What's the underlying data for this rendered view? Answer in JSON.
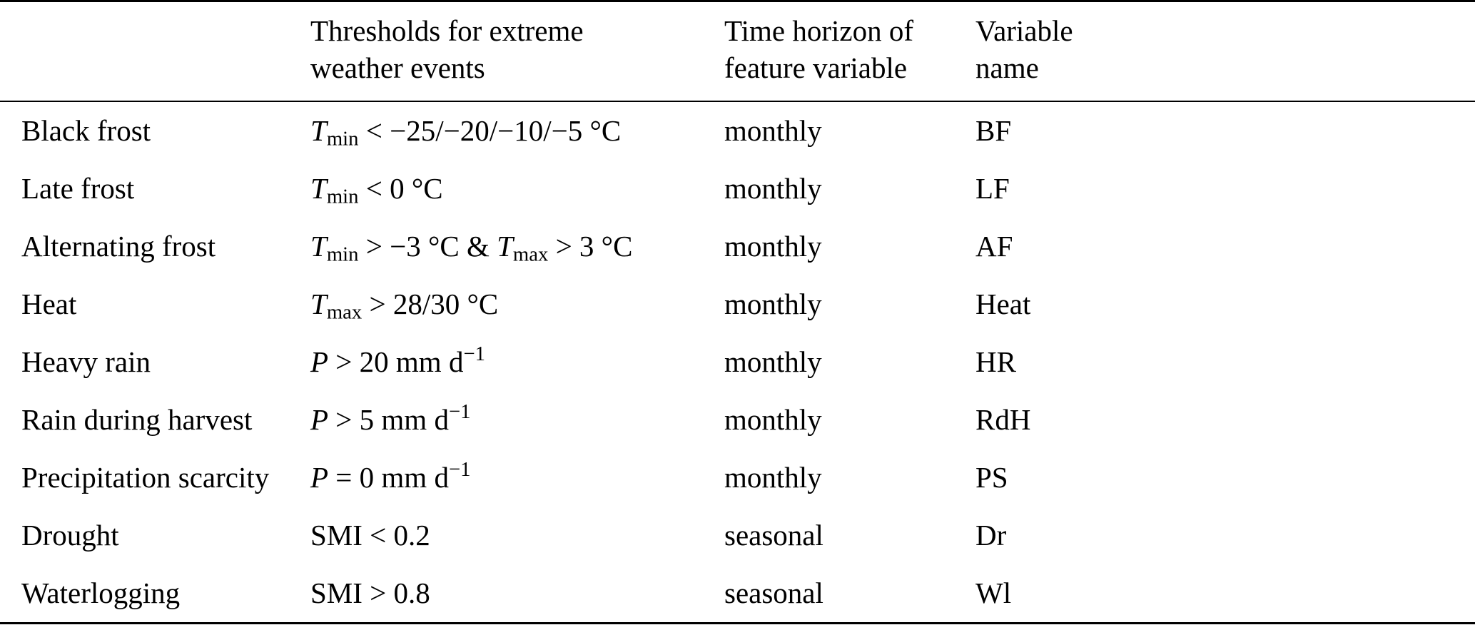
{
  "table": {
    "headers": [
      {
        "lines": [
          "",
          ""
        ]
      },
      {
        "lines": [
          "Thresholds for extreme",
          "weather events"
        ]
      },
      {
        "lines": [
          "Time horizon of",
          "feature variable"
        ]
      },
      {
        "lines": [
          "Variable",
          "name"
        ]
      }
    ],
    "rows": [
      {
        "event": "Black frost",
        "threshold": [
          {
            "t": "var",
            "text": "T"
          },
          {
            "t": "sub",
            "text": "min"
          },
          {
            "t": "txt",
            "text": " < −25/−20/−10/−5 °C"
          }
        ],
        "horizon": "monthly",
        "variable": "BF"
      },
      {
        "event": "Late frost",
        "threshold": [
          {
            "t": "var",
            "text": "T"
          },
          {
            "t": "sub",
            "text": "min"
          },
          {
            "t": "txt",
            "text": " < 0 °C"
          }
        ],
        "horizon": "monthly",
        "variable": "LF"
      },
      {
        "event": "Alternating frost",
        "threshold": [
          {
            "t": "var",
            "text": "T"
          },
          {
            "t": "sub",
            "text": "min"
          },
          {
            "t": "txt",
            "text": " > −3 °C & "
          },
          {
            "t": "var",
            "text": "T"
          },
          {
            "t": "sub",
            "text": "max"
          },
          {
            "t": "txt",
            "text": " > 3 °C"
          }
        ],
        "horizon": "monthly",
        "variable": "AF"
      },
      {
        "event": "Heat",
        "threshold": [
          {
            "t": "var",
            "text": "T"
          },
          {
            "t": "sub",
            "text": "max"
          },
          {
            "t": "txt",
            "text": " > 28/30 °C"
          }
        ],
        "horizon": "monthly",
        "variable": "Heat"
      },
      {
        "event": "Heavy rain",
        "threshold": [
          {
            "t": "var",
            "text": "P"
          },
          {
            "t": "txt",
            "text": " > 20 mm d"
          },
          {
            "t": "sup",
            "text": "−1"
          }
        ],
        "horizon": "monthly",
        "variable": "HR"
      },
      {
        "event": "Rain during harvest",
        "threshold": [
          {
            "t": "var",
            "text": "P"
          },
          {
            "t": "txt",
            "text": " > 5 mm d"
          },
          {
            "t": "sup",
            "text": "−1"
          }
        ],
        "horizon": "monthly",
        "variable": "RdH"
      },
      {
        "event": "Precipitation scarcity",
        "threshold": [
          {
            "t": "var",
            "text": "P"
          },
          {
            "t": "txt",
            "text": " = 0 mm d"
          },
          {
            "t": "sup",
            "text": "−1"
          }
        ],
        "horizon": "monthly",
        "variable": "PS"
      },
      {
        "event": "Drought",
        "threshold": [
          {
            "t": "txt",
            "text": "SMI < 0.2"
          }
        ],
        "horizon": "seasonal",
        "variable": "Dr"
      },
      {
        "event": "Waterlogging",
        "threshold": [
          {
            "t": "txt",
            "text": "SMI > 0.8"
          }
        ],
        "horizon": "seasonal",
        "variable": "Wl"
      }
    ]
  }
}
